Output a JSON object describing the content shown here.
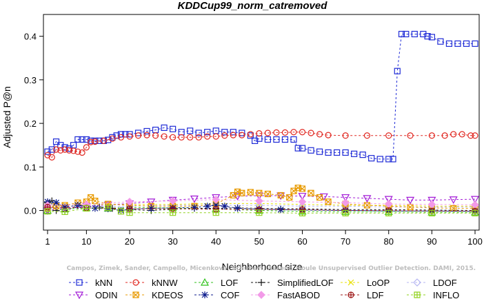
{
  "chart_data": {
    "type": "line",
    "title": "KDDCup99_norm_catremoved",
    "xlabel": "Neighborhood size",
    "ylabel": "Adjusted P@n",
    "xlim": [
      1,
      100
    ],
    "ylim": [
      -0.045,
      0.45
    ],
    "xticks": [
      1,
      10,
      20,
      30,
      40,
      50,
      60,
      70,
      80,
      90,
      100
    ],
    "yticks": [
      0.0,
      0.1,
      0.2,
      0.3,
      0.4
    ],
    "ytick_labels": [
      "0.0",
      "0.1",
      "0.2",
      "0.3",
      "0.4"
    ],
    "grid": false,
    "legend_position": "bottom",
    "watermark": "Campos, Zimek, Sander, Campello, Micenkova, Schubert, Assent, Houle Unsupervised Outlier Detection. DAMI, 2015.",
    "series": [
      {
        "name": "kNN",
        "color": "#1f2bd6",
        "marker": "square",
        "points": [
          [
            1,
            0.135
          ],
          [
            2,
            0.14
          ],
          [
            3,
            0.158
          ],
          [
            4,
            0.15
          ],
          [
            5,
            0.145
          ],
          [
            6,
            0.142
          ],
          [
            7,
            0.15
          ],
          [
            8,
            0.163
          ],
          [
            9,
            0.163
          ],
          [
            10,
            0.163
          ],
          [
            11,
            0.16
          ],
          [
            12,
            0.16
          ],
          [
            13,
            0.16
          ],
          [
            14,
            0.16
          ],
          [
            15,
            0.162
          ],
          [
            16,
            0.168
          ],
          [
            17,
            0.172
          ],
          [
            18,
            0.175
          ],
          [
            19,
            0.175
          ],
          [
            20,
            0.175
          ],
          [
            22,
            0.178
          ],
          [
            24,
            0.182
          ],
          [
            26,
            0.185
          ],
          [
            28,
            0.19
          ],
          [
            30,
            0.187
          ],
          [
            32,
            0.18
          ],
          [
            34,
            0.183
          ],
          [
            36,
            0.178
          ],
          [
            38,
            0.18
          ],
          [
            40,
            0.183
          ],
          [
            42,
            0.18
          ],
          [
            44,
            0.18
          ],
          [
            46,
            0.178
          ],
          [
            48,
            0.172
          ],
          [
            49,
            0.16
          ],
          [
            50,
            0.165
          ],
          [
            52,
            0.163
          ],
          [
            54,
            0.163
          ],
          [
            56,
            0.163
          ],
          [
            58,
            0.163
          ],
          [
            59,
            0.143
          ],
          [
            60,
            0.143
          ],
          [
            62,
            0.138
          ],
          [
            64,
            0.135
          ],
          [
            66,
            0.133
          ],
          [
            68,
            0.133
          ],
          [
            70,
            0.133
          ],
          [
            72,
            0.13
          ],
          [
            74,
            0.128
          ],
          [
            76,
            0.12
          ],
          [
            78,
            0.118
          ],
          [
            80,
            0.118
          ],
          [
            81,
            0.118
          ],
          [
            82,
            0.32
          ],
          [
            83,
            0.405
          ],
          [
            84,
            0.405
          ],
          [
            86,
            0.405
          ],
          [
            88,
            0.405
          ],
          [
            89,
            0.4
          ],
          [
            90,
            0.398
          ],
          [
            92,
            0.388
          ],
          [
            94,
            0.383
          ],
          [
            96,
            0.383
          ],
          [
            98,
            0.383
          ],
          [
            100,
            0.383
          ]
        ]
      },
      {
        "name": "kNNW",
        "color": "#e0261f",
        "marker": "circle",
        "points": [
          [
            1,
            0.127
          ],
          [
            2,
            0.122
          ],
          [
            3,
            0.14
          ],
          [
            4,
            0.138
          ],
          [
            5,
            0.14
          ],
          [
            6,
            0.138
          ],
          [
            7,
            0.137
          ],
          [
            8,
            0.135
          ],
          [
            9,
            0.133
          ],
          [
            10,
            0.145
          ],
          [
            11,
            0.157
          ],
          [
            12,
            0.158
          ],
          [
            14,
            0.16
          ],
          [
            16,
            0.165
          ],
          [
            18,
            0.168
          ],
          [
            20,
            0.17
          ],
          [
            22,
            0.172
          ],
          [
            24,
            0.173
          ],
          [
            26,
            0.172
          ],
          [
            28,
            0.17
          ],
          [
            30,
            0.168
          ],
          [
            32,
            0.168
          ],
          [
            34,
            0.168
          ],
          [
            36,
            0.168
          ],
          [
            38,
            0.17
          ],
          [
            40,
            0.17
          ],
          [
            42,
            0.172
          ],
          [
            44,
            0.173
          ],
          [
            46,
            0.173
          ],
          [
            48,
            0.175
          ],
          [
            50,
            0.177
          ],
          [
            52,
            0.178
          ],
          [
            54,
            0.179
          ],
          [
            56,
            0.179
          ],
          [
            58,
            0.18
          ],
          [
            60,
            0.18
          ],
          [
            62,
            0.178
          ],
          [
            64,
            0.175
          ],
          [
            66,
            0.173
          ],
          [
            70,
            0.172
          ],
          [
            75,
            0.172
          ],
          [
            80,
            0.172
          ],
          [
            85,
            0.172
          ],
          [
            90,
            0.172
          ],
          [
            93,
            0.172
          ],
          [
            95,
            0.175
          ],
          [
            97,
            0.175
          ],
          [
            99,
            0.172
          ],
          [
            100,
            0.172
          ]
        ]
      },
      {
        "name": "LOF",
        "color": "#2fc21b",
        "marker": "triangle-up",
        "points": [
          [
            1,
            0.0
          ],
          [
            5,
            0.003
          ],
          [
            10,
            0.006
          ],
          [
            15,
            0.005
          ],
          [
            20,
            0.007
          ],
          [
            30,
            0.006
          ],
          [
            40,
            0.004
          ],
          [
            50,
            0.0
          ],
          [
            60,
            -0.002
          ],
          [
            70,
            -0.003
          ],
          [
            80,
            -0.003
          ],
          [
            90,
            -0.004
          ],
          [
            100,
            -0.004
          ]
        ]
      },
      {
        "name": "SimplifiedLOF",
        "color": "#111111",
        "marker": "plus",
        "points": [
          [
            1,
            0.018
          ],
          [
            2,
            0.022
          ],
          [
            3,
            0.0
          ],
          [
            5,
            -0.002
          ],
          [
            8,
            0.012
          ],
          [
            10,
            0.01
          ],
          [
            13,
            0.008
          ],
          [
            16,
            0.005
          ],
          [
            18,
            0.0
          ],
          [
            20,
            0.002
          ],
          [
            25,
            0.0
          ],
          [
            30,
            0.003
          ],
          [
            35,
            0.005
          ],
          [
            40,
            0.005
          ],
          [
            45,
            0.006
          ],
          [
            50,
            0.005
          ],
          [
            55,
            0.004
          ],
          [
            60,
            0.004
          ],
          [
            70,
            0.002
          ],
          [
            80,
            0.002
          ],
          [
            90,
            0.001
          ],
          [
            100,
            0.0
          ]
        ]
      },
      {
        "name": "LoOP",
        "color": "#e8e000",
        "marker": "cross",
        "points": [
          [
            1,
            0.01
          ],
          [
            5,
            0.012
          ],
          [
            10,
            0.015
          ],
          [
            15,
            0.013
          ],
          [
            20,
            0.014
          ],
          [
            30,
            0.014
          ],
          [
            40,
            0.016
          ],
          [
            50,
            0.016
          ],
          [
            60,
            0.014
          ],
          [
            70,
            0.012
          ],
          [
            80,
            0.012
          ],
          [
            90,
            0.01
          ],
          [
            100,
            0.01
          ]
        ]
      },
      {
        "name": "LDOF",
        "color": "#b5b5f2",
        "marker": "diamond",
        "points": [
          [
            1,
            0.005
          ],
          [
            10,
            0.008
          ],
          [
            20,
            0.01
          ],
          [
            30,
            0.012
          ],
          [
            40,
            0.012
          ],
          [
            50,
            0.012
          ],
          [
            60,
            0.01
          ],
          [
            70,
            0.01
          ],
          [
            80,
            0.008
          ],
          [
            90,
            0.008
          ],
          [
            100,
            0.008
          ]
        ]
      },
      {
        "name": "ODIN",
        "color": "#a21ad6",
        "marker": "triangle-down",
        "points": [
          [
            1,
            0.0
          ],
          [
            5,
            0.005
          ],
          [
            10,
            0.01
          ],
          [
            15,
            0.013
          ],
          [
            20,
            0.016
          ],
          [
            25,
            0.02
          ],
          [
            30,
            0.024
          ],
          [
            35,
            0.027
          ],
          [
            40,
            0.03
          ],
          [
            45,
            0.033
          ],
          [
            50,
            0.034
          ],
          [
            55,
            0.034
          ],
          [
            60,
            0.033
          ],
          [
            65,
            0.032
          ],
          [
            70,
            0.03
          ],
          [
            75,
            0.028
          ],
          [
            80,
            0.026
          ],
          [
            85,
            0.024
          ],
          [
            90,
            0.024
          ],
          [
            95,
            0.025
          ],
          [
            100,
            0.026
          ]
        ]
      },
      {
        "name": "KDEOS",
        "color": "#e89a00",
        "marker": "square-x",
        "points": [
          [
            1,
            0.005
          ],
          [
            3,
            0.01
          ],
          [
            5,
            0.012
          ],
          [
            8,
            0.018
          ],
          [
            10,
            0.02
          ],
          [
            11,
            0.03
          ],
          [
            12,
            0.022
          ],
          [
            15,
            0.015
          ],
          [
            20,
            0.012
          ],
          [
            25,
            0.01
          ],
          [
            30,
            0.01
          ],
          [
            35,
            0.01
          ],
          [
            40,
            0.015
          ],
          [
            44,
            0.035
          ],
          [
            45,
            0.043
          ],
          [
            46,
            0.04
          ],
          [
            48,
            0.042
          ],
          [
            50,
            0.04
          ],
          [
            52,
            0.038
          ],
          [
            55,
            0.035
          ],
          [
            57,
            0.03
          ],
          [
            58,
            0.045
          ],
          [
            59,
            0.052
          ],
          [
            60,
            0.05
          ],
          [
            62,
            0.04
          ],
          [
            64,
            0.03
          ],
          [
            66,
            0.02
          ],
          [
            70,
            0.015
          ],
          [
            75,
            0.012
          ],
          [
            80,
            0.01
          ],
          [
            85,
            0.008
          ],
          [
            90,
            0.006
          ],
          [
            95,
            0.005
          ],
          [
            100,
            0.005
          ]
        ]
      },
      {
        "name": "COF",
        "color": "#0b1a8c",
        "marker": "asterisk",
        "points": [
          [
            1,
            0.02
          ],
          [
            3,
            0.018
          ],
          [
            5,
            0.008
          ],
          [
            8,
            0.012
          ],
          [
            10,
            0.008
          ],
          [
            12,
            0.005
          ],
          [
            15,
            0.004
          ],
          [
            18,
            0.0
          ],
          [
            20,
            0.003
          ],
          [
            25,
            0.005
          ],
          [
            30,
            0.006
          ],
          [
            35,
            0.007
          ],
          [
            38,
            0.01
          ],
          [
            40,
            0.012
          ],
          [
            42,
            0.01
          ],
          [
            45,
            0.005
          ],
          [
            50,
            0.003
          ],
          [
            55,
            0.002
          ],
          [
            60,
            0.001
          ],
          [
            70,
            0.0
          ],
          [
            80,
            -0.001
          ],
          [
            90,
            -0.001
          ],
          [
            100,
            -0.002
          ]
        ]
      },
      {
        "name": "FastABOD",
        "color": "#f29ae8",
        "marker": "diamond-filled",
        "points": [
          [
            1,
            0.012
          ],
          [
            10,
            0.014
          ],
          [
            20,
            0.02
          ],
          [
            30,
            0.022
          ],
          [
            40,
            0.025
          ],
          [
            50,
            0.022
          ],
          [
            60,
            0.02
          ],
          [
            70,
            0.018
          ],
          [
            80,
            0.015
          ],
          [
            90,
            0.014
          ],
          [
            100,
            0.013
          ]
        ]
      },
      {
        "name": "LDF",
        "color": "#9c1414",
        "marker": "circle-plus",
        "points": [
          [
            1,
            0.008
          ],
          [
            10,
            0.006
          ],
          [
            20,
            0.004
          ],
          [
            30,
            0.004
          ],
          [
            40,
            0.003
          ],
          [
            50,
            0.002
          ],
          [
            60,
            0.002
          ],
          [
            70,
            0.0
          ],
          [
            80,
            0.0
          ],
          [
            90,
            -0.001
          ],
          [
            100,
            -0.001
          ]
        ]
      },
      {
        "name": "INFLO",
        "color": "#8fd11a",
        "marker": "square-cross",
        "points": [
          [
            1,
            -0.002
          ],
          [
            5,
            -0.003
          ],
          [
            10,
            0.005
          ],
          [
            15,
            0.006
          ],
          [
            18,
            -0.002
          ],
          [
            20,
            -0.005
          ],
          [
            30,
            -0.005
          ],
          [
            40,
            -0.005
          ],
          [
            50,
            -0.005
          ],
          [
            60,
            -0.006
          ],
          [
            70,
            -0.006
          ],
          [
            80,
            -0.006
          ],
          [
            90,
            -0.006
          ],
          [
            100,
            -0.006
          ]
        ]
      }
    ]
  }
}
